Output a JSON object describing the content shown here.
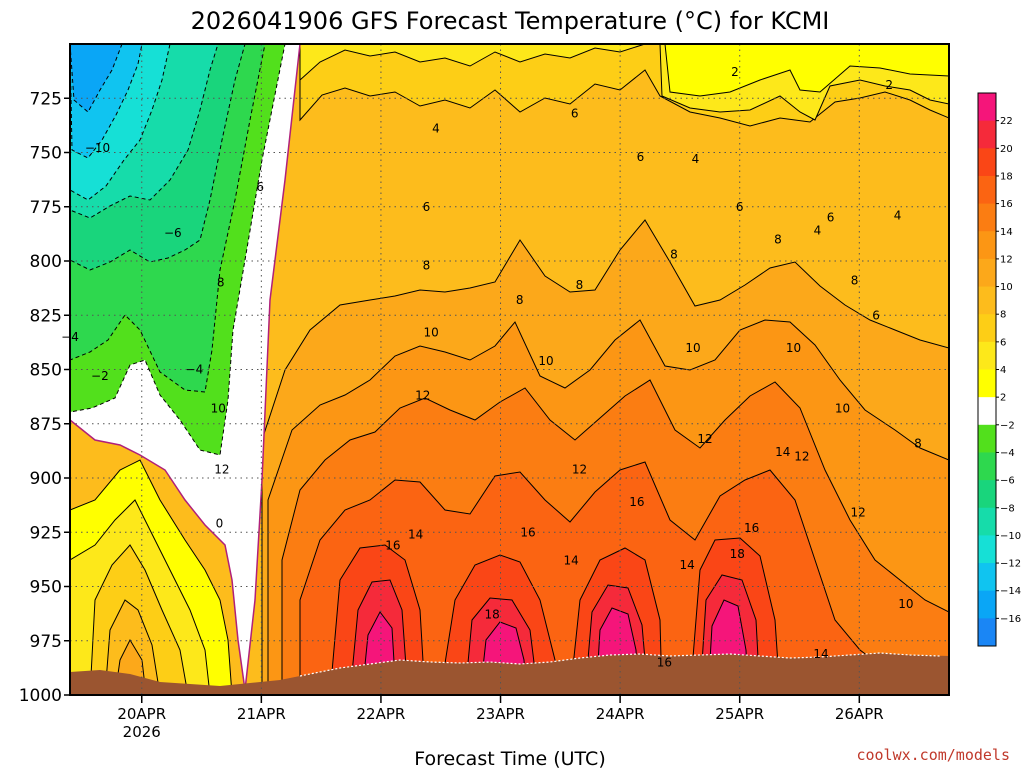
{
  "chart_data": {
    "type": "heatmap",
    "title": "2026041906 GFS Forecast Temperature (°C) for KCMI",
    "xlabel": "Forecast Time (UTC)",
    "ylabel": "",
    "credit": "coolwx.com/models",
    "y_ticks": [
      "725",
      "750",
      "775",
      "800",
      "825",
      "850",
      "875",
      "900",
      "925",
      "950",
      "975",
      "1000"
    ],
    "y_values": [
      725,
      750,
      775,
      800,
      825,
      850,
      875,
      900,
      925,
      950,
      975,
      1000
    ],
    "ylim": [
      700,
      1000
    ],
    "x_ticks": [
      {
        "label": "20APR",
        "sub": "2026",
        "day": 0
      },
      {
        "label": "21APR",
        "sub": "",
        "day": 1
      },
      {
        "label": "22APR",
        "sub": "",
        "day": 2
      },
      {
        "label": "23APR",
        "sub": "",
        "day": 3
      },
      {
        "label": "24APR",
        "sub": "",
        "day": 4
      },
      {
        "label": "25APR",
        "sub": "",
        "day": 5
      },
      {
        "label": "26APR",
        "sub": "",
        "day": 6
      }
    ],
    "xlim_days": [
      -0.6,
      6.75
    ],
    "colorbar": {
      "labels": [
        "22",
        "20",
        "18",
        "16",
        "14",
        "12",
        "10",
        "8",
        "6",
        "4",
        "2",
        "−2",
        "−4",
        "−6",
        "−8",
        "−10",
        "−12",
        "−14",
        "−16"
      ],
      "colors": [
        "#f5157a",
        "#f52a3a",
        "#fa4616",
        "#fb6412",
        "#fb7d12",
        "#fc9614",
        "#fca81a",
        "#fdbc1c",
        "#fdce16",
        "#fde81a",
        "#ffff00",
        "#ffffff",
        "#52e01c",
        "#2ed84e",
        "#19d57c",
        "#16dcaa",
        "#16e0d6",
        "#10c4f0",
        "#0aa6f6",
        "#1a86f5"
      ]
    },
    "contour_labels": [
      {
        "text": "2",
        "day": 4.96,
        "p": 713
      },
      {
        "text": "2",
        "day": 6.25,
        "p": 719
      },
      {
        "text": "4",
        "day": 2.46,
        "p": 739
      },
      {
        "text": "4",
        "day": 4.63,
        "p": 753
      },
      {
        "text": "4",
        "day": 6.32,
        "p": 779
      },
      {
        "text": "4",
        "day": 5.65,
        "p": 786
      },
      {
        "text": "6",
        "day": 3.62,
        "p": 732
      },
      {
        "text": "6",
        "day": 4.17,
        "p": 752
      },
      {
        "text": "6",
        "day": 0.99,
        "p": 766
      },
      {
        "text": "6",
        "day": 2.38,
        "p": 775
      },
      {
        "text": "6",
        "day": 5.0,
        "p": 775
      },
      {
        "text": "6",
        "day": 5.76,
        "p": 780
      },
      {
        "text": "6",
        "day": 6.14,
        "p": 825
      },
      {
        "text": "8",
        "day": 0.66,
        "p": 810
      },
      {
        "text": "8",
        "day": 2.38,
        "p": 802
      },
      {
        "text": "8",
        "day": 3.16,
        "p": 818
      },
      {
        "text": "8",
        "day": 3.66,
        "p": 811
      },
      {
        "text": "8",
        "day": 4.45,
        "p": 797
      },
      {
        "text": "8",
        "day": 5.32,
        "p": 790
      },
      {
        "text": "8",
        "day": 5.96,
        "p": 809
      },
      {
        "text": "8",
        "day": 6.49,
        "p": 884
      },
      {
        "text": "10",
        "day": 2.42,
        "p": 833
      },
      {
        "text": "10",
        "day": 3.38,
        "p": 846
      },
      {
        "text": "10",
        "day": 4.61,
        "p": 840
      },
      {
        "text": "10",
        "day": 5.45,
        "p": 840
      },
      {
        "text": "10",
        "day": 5.86,
        "p": 868
      },
      {
        "text": "10",
        "day": 0.64,
        "p": 868
      },
      {
        "text": "10",
        "day": 6.39,
        "p": 958
      },
      {
        "text": "12",
        "day": 2.35,
        "p": 862
      },
      {
        "text": "12",
        "day": 0.67,
        "p": 896
      },
      {
        "text": "12",
        "day": 3.66,
        "p": 896
      },
      {
        "text": "12",
        "day": 4.71,
        "p": 882
      },
      {
        "text": "12",
        "day": 5.52,
        "p": 890
      },
      {
        "text": "12",
        "day": 5.99,
        "p": 916
      },
      {
        "text": "14",
        "day": 2.29,
        "p": 926
      },
      {
        "text": "14",
        "day": 3.59,
        "p": 938
      },
      {
        "text": "14",
        "day": 4.56,
        "p": 940
      },
      {
        "text": "14",
        "day": 5.36,
        "p": 888
      },
      {
        "text": "14",
        "day": 5.68,
        "p": 981
      },
      {
        "text": "16",
        "day": 2.1,
        "p": 931
      },
      {
        "text": "16",
        "day": 3.23,
        "p": 925
      },
      {
        "text": "16",
        "day": 4.14,
        "p": 911
      },
      {
        "text": "16",
        "day": 5.1,
        "p": 923
      },
      {
        "text": "16",
        "day": 4.37,
        "p": 985
      },
      {
        "text": "18",
        "day": 2.93,
        "p": 963
      },
      {
        "text": "18",
        "day": 4.98,
        "p": 935
      },
      {
        "text": "0",
        "day": 0.65,
        "p": 921
      },
      {
        "text": "−2",
        "day": -0.35,
        "p": 853
      },
      {
        "text": "−4",
        "day": -0.6,
        "p": 835
      },
      {
        "text": "−4",
        "day": 0.44,
        "p": 850
      },
      {
        "text": "−6",
        "day": 0.26,
        "p": 787
      },
      {
        "text": "−10",
        "day": -0.37,
        "p": 748
      }
    ]
  }
}
